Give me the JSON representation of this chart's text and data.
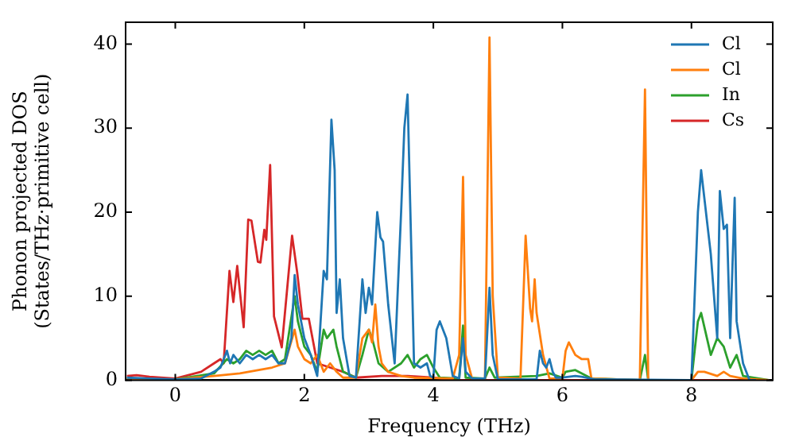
{
  "chart_data": {
    "type": "line",
    "xlabel": "Frequency (THz)",
    "ylabel": "Phonon projected DOS\n(States/THz·primitive cell)",
    "xlim": [
      -0.77,
      9.26
    ],
    "ylim": [
      0,
      42.6
    ],
    "xticks": [
      0,
      2,
      4,
      6,
      8
    ],
    "yticks": [
      0,
      10,
      20,
      30,
      40
    ],
    "grid": false,
    "legend": "top right",
    "marker": "none",
    "line_style": "solid",
    "series": [
      {
        "name": "Cl",
        "color": "#1f77b4",
        "x": [
          -0.75,
          -0.4,
          0,
          0.4,
          0.6,
          0.7,
          0.8,
          0.85,
          0.9,
          1.0,
          1.1,
          1.2,
          1.3,
          1.4,
          1.5,
          1.6,
          1.7,
          1.8,
          1.85,
          1.9,
          2.0,
          2.1,
          2.2,
          2.3,
          2.35,
          2.42,
          2.47,
          2.5,
          2.55,
          2.6,
          2.7,
          2.8,
          2.9,
          2.95,
          3.0,
          3.05,
          3.13,
          3.18,
          3.22,
          3.3,
          3.4,
          3.5,
          3.55,
          3.6,
          3.7,
          3.8,
          3.9,
          3.95,
          4.0,
          4.05,
          4.1,
          4.2,
          4.3,
          4.4,
          4.46,
          4.5,
          4.6,
          4.7,
          4.8,
          4.87,
          4.92,
          5.0,
          5.2,
          5.6,
          5.65,
          5.7,
          5.75,
          5.8,
          5.85,
          5.9,
          6.0,
          6.2,
          6.3,
          6.5,
          8.0,
          8.1,
          8.15,
          8.3,
          8.4,
          8.44,
          8.5,
          8.55,
          8.6,
          8.67,
          8.7,
          8.8,
          8.9,
          9.0
        ],
        "values": [
          0.3,
          0.2,
          0.1,
          0.2,
          1,
          1.5,
          3.5,
          2,
          3,
          2,
          3,
          2.5,
          3,
          2.5,
          3,
          2,
          2,
          5,
          12.5,
          9,
          5,
          3,
          0.5,
          13,
          12,
          31,
          25,
          8,
          12,
          5,
          0.5,
          0.3,
          12,
          8,
          11,
          9,
          20,
          17,
          16.5,
          9,
          2,
          20,
          30,
          34,
          2,
          1.5,
          2,
          0.5,
          0.3,
          6,
          7,
          5,
          0.5,
          0.2,
          5,
          1,
          0.2,
          0.2,
          0.2,
          11,
          3,
          0.1,
          0.1,
          0.1,
          3.5,
          2,
          1.5,
          2.5,
          1,
          0.3,
          0.3,
          0.5,
          0.4,
          0.1,
          0,
          20,
          25,
          15,
          5,
          22.5,
          18,
          18.5,
          5,
          21.7,
          7,
          2,
          0,
          0
        ]
      },
      {
        "name": "Cl",
        "color": "#ff7f0e",
        "x": [
          -0.75,
          -0.4,
          0,
          0.6,
          1.0,
          1.5,
          1.7,
          1.85,
          1.9,
          2.0,
          2.1,
          2.2,
          2.3,
          2.4,
          2.5,
          2.6,
          2.8,
          2.9,
          3.0,
          3.05,
          3.1,
          3.15,
          3.2,
          3.3,
          3.5,
          3.7,
          4.3,
          4.4,
          4.46,
          4.5,
          4.6,
          4.8,
          4.87,
          4.92,
          5.0,
          5.35,
          5.43,
          5.5,
          5.53,
          5.57,
          5.6,
          5.7,
          5.8,
          6.0,
          6.05,
          6.1,
          6.2,
          6.3,
          6.4,
          6.45,
          7.2,
          7.28,
          7.33,
          8.0,
          8.1,
          8.2,
          8.4,
          8.5,
          8.6,
          8.8,
          9.2
        ],
        "values": [
          0.2,
          0.1,
          0.1,
          0.5,
          0.8,
          1.5,
          2,
          6,
          4,
          2.5,
          2,
          3,
          1,
          2,
          1,
          0.3,
          0.3,
          5,
          6,
          4.5,
          9,
          4,
          2,
          1,
          0.5,
          0.3,
          0.2,
          3,
          24.2,
          3,
          0.2,
          0.2,
          40.8,
          10,
          0.3,
          0.2,
          17.2,
          8.5,
          7,
          12,
          8,
          3,
          0.2,
          0.2,
          3.5,
          4.5,
          3,
          2.5,
          2.5,
          0.2,
          0,
          34.6,
          0,
          0,
          1,
          1,
          0.5,
          1,
          0.5,
          0.2,
          0
        ]
      },
      {
        "name": "In",
        "color": "#2ca02c",
        "x": [
          -0.75,
          -0.4,
          0,
          0.6,
          0.8,
          0.9,
          1.0,
          1.1,
          1.2,
          1.3,
          1.4,
          1.5,
          1.6,
          1.7,
          1.85,
          1.9,
          2.0,
          2.1,
          2.2,
          2.3,
          2.35,
          2.45,
          2.5,
          2.6,
          2.8,
          2.9,
          3.0,
          3.05,
          3.15,
          3.3,
          3.5,
          3.6,
          3.7,
          3.8,
          3.9,
          4.0,
          4.1,
          4.4,
          4.46,
          4.5,
          4.8,
          4.87,
          4.95,
          5.6,
          5.8,
          6.0,
          6.05,
          6.2,
          6.45,
          7.2,
          7.28,
          7.33,
          8.0,
          8.1,
          8.15,
          8.3,
          8.4,
          8.5,
          8.6,
          8.7,
          8.8,
          9.2
        ],
        "values": [
          0.2,
          0.1,
          0.1,
          0.8,
          2.5,
          2,
          2.5,
          3.5,
          3,
          3.5,
          3,
          3.5,
          2,
          2.5,
          10,
          7,
          4,
          3,
          1,
          6,
          5,
          6,
          4,
          1,
          0.3,
          3,
          6,
          5,
          2,
          1,
          2,
          3,
          1.5,
          2.5,
          3,
          1.5,
          0.3,
          0.2,
          6.5,
          0.3,
          0.2,
          1.5,
          0.3,
          0.5,
          0.8,
          0.3,
          1,
          1.2,
          0.2,
          0,
          3,
          0,
          0,
          7,
          8,
          3,
          5,
          4,
          1.5,
          3,
          0.5,
          0
        ]
      },
      {
        "name": "Cs",
        "color": "#d62728",
        "x": [
          -0.75,
          -0.6,
          -0.4,
          0,
          0.4,
          0.6,
          0.7,
          0.75,
          0.84,
          0.9,
          0.96,
          1.06,
          1.13,
          1.18,
          1.28,
          1.32,
          1.38,
          1.41,
          1.47,
          1.53,
          1.65,
          1.81,
          1.89,
          1.97,
          2.07,
          2.2,
          2.4,
          2.6,
          2.8,
          3.2,
          3.6,
          4.0,
          4.3,
          9.2
        ],
        "values": [
          0.5,
          0.6,
          0.4,
          0.2,
          1,
          2,
          2.5,
          2,
          13,
          9.3,
          13.6,
          6.3,
          19.1,
          19,
          14.1,
          14,
          17.9,
          16.7,
          25.6,
          7.6,
          3.9,
          17.2,
          12.8,
          7.3,
          7.3,
          2,
          1.5,
          1,
          0.3,
          0.5,
          0.5,
          0.3,
          0,
          0
        ]
      }
    ]
  }
}
